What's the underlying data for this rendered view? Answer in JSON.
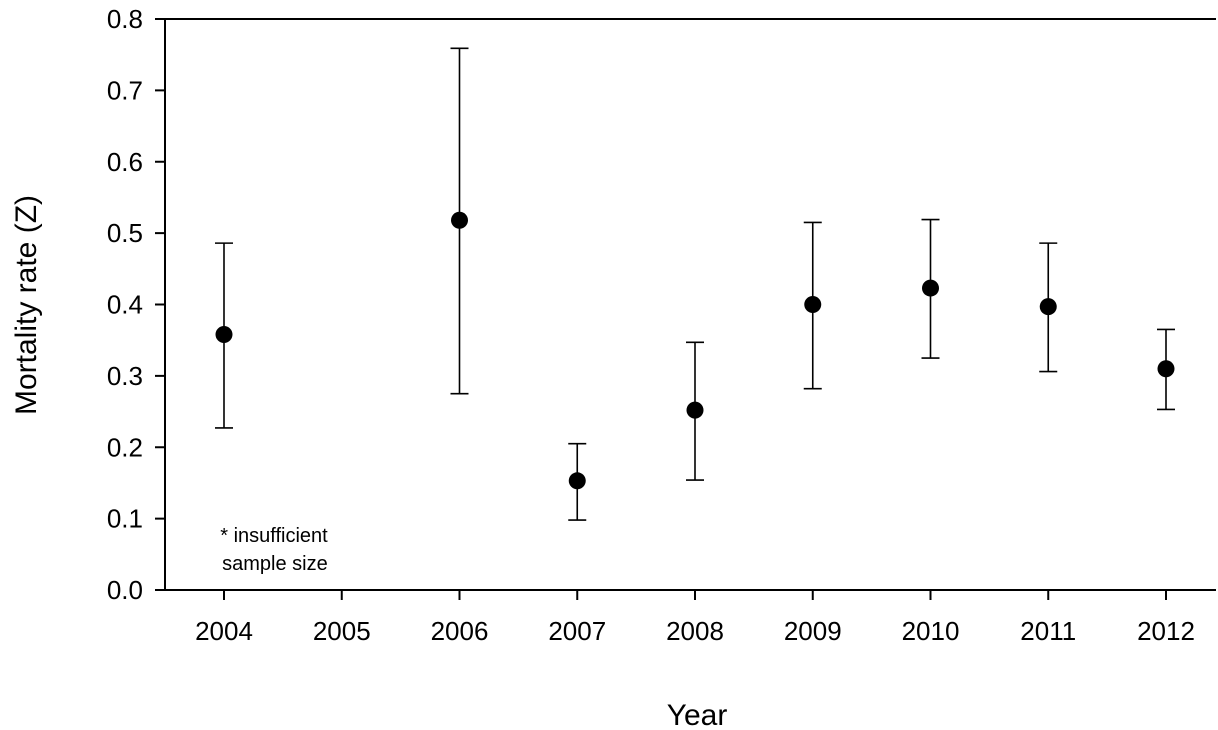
{
  "chart_data": {
    "type": "scatter",
    "title": "",
    "xlabel": "Year",
    "ylabel": "Mortality rate (Z)",
    "categories": [
      "2004",
      "2005",
      "2006",
      "2007",
      "2008",
      "2009",
      "2010",
      "2011",
      "2012"
    ],
    "series": [
      {
        "values": [
          0.358,
          null,
          0.518,
          0.153,
          0.252,
          0.4,
          0.423,
          0.397,
          0.31
        ],
        "error_low": [
          0.227,
          null,
          0.275,
          0.098,
          0.154,
          0.282,
          0.325,
          0.306,
          0.253
        ],
        "error_high": [
          0.486,
          null,
          0.759,
          0.205,
          0.347,
          0.515,
          0.519,
          0.486,
          0.365
        ]
      }
    ],
    "ylim": [
      0,
      0.8
    ],
    "yticks": [
      "0.0",
      "0.1",
      "0.2",
      "0.3",
      "0.4",
      "0.5",
      "0.6",
      "0.7",
      "0.8"
    ],
    "grid": false,
    "annotation": {
      "category": "2005",
      "lines": [
        "* insufficient",
        "sample size"
      ]
    },
    "colors": {
      "marker": "#000000",
      "axis": "#000000"
    }
  }
}
